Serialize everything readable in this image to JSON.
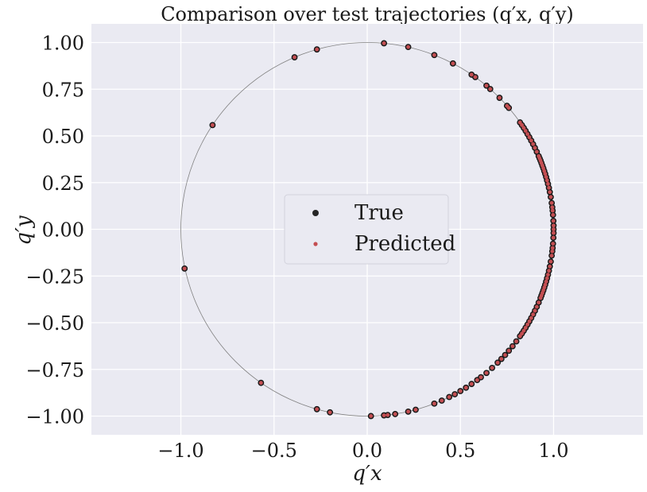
{
  "chart_data": {
    "type": "scatter",
    "title": "Comparison over test trajectories (q′x, q′y)",
    "xlabel": "q′x",
    "ylabel": "q′y",
    "xlim": [
      -1.48,
      1.48
    ],
    "ylim": [
      -1.1,
      1.1
    ],
    "xticks": [
      -1.0,
      -0.5,
      0.0,
      0.5,
      1.0
    ],
    "xtick_labels": [
      "−1.0",
      "−0.5",
      "0.0",
      "0.5",
      "1.0"
    ],
    "yticks": [
      1.0,
      0.75,
      0.5,
      0.25,
      0.0,
      -0.25,
      -0.5,
      -0.75,
      -1.0
    ],
    "ytick_labels": [
      "1.00",
      "0.75",
      "0.50",
      "0.25",
      "0.00",
      "−0.25",
      "−0.50",
      "−0.75",
      "−1.00"
    ],
    "grid": true,
    "reference_curve": "unit circle",
    "legend_position": "center-left",
    "colors": {
      "background": "#eaeaf2",
      "grid": "#ffffff",
      "true": "#262626",
      "predicted": "#c44e52",
      "circle": "#808080"
    },
    "series": [
      {
        "name": "True",
        "points": [
          [
            0.09,
            0.996
          ],
          [
            0.22,
            0.976
          ],
          [
            0.36,
            0.933
          ],
          [
            0.46,
            0.888
          ],
          [
            0.56,
            0.828
          ],
          [
            0.58,
            0.815
          ],
          [
            0.64,
            0.769
          ],
          [
            0.66,
            0.751
          ],
          [
            0.71,
            0.704
          ],
          [
            0.75,
            0.661
          ],
          [
            0.76,
            0.65
          ],
          [
            0.82,
            0.572
          ],
          [
            0.83,
            0.558
          ],
          [
            0.84,
            0.543
          ],
          [
            0.85,
            0.527
          ],
          [
            0.86,
            0.51
          ],
          [
            0.87,
            0.493
          ],
          [
            0.88,
            0.475
          ],
          [
            0.89,
            0.456
          ],
          [
            0.9,
            0.436
          ],
          [
            0.91,
            0.415
          ],
          [
            0.92,
            0.392
          ],
          [
            0.925,
            0.38
          ],
          [
            0.93,
            0.368
          ],
          [
            0.935,
            0.355
          ],
          [
            0.94,
            0.341
          ],
          [
            0.945,
            0.327
          ],
          [
            0.95,
            0.312
          ],
          [
            0.955,
            0.297
          ],
          [
            0.96,
            0.28
          ],
          [
            0.965,
            0.262
          ],
          [
            0.97,
            0.243
          ],
          [
            0.975,
            0.222
          ],
          [
            0.98,
            0.199
          ],
          [
            0.985,
            0.173
          ],
          [
            0.99,
            0.141
          ],
          [
            0.993,
            0.118
          ],
          [
            0.995,
            0.1
          ],
          [
            0.997,
            0.077
          ],
          [
            0.999,
            0.045
          ],
          [
            1.0,
            0.02
          ],
          [
            1.0,
            0.0
          ],
          [
            1.0,
            -0.02
          ],
          [
            0.999,
            -0.045
          ],
          [
            0.997,
            -0.077
          ],
          [
            0.995,
            -0.1
          ],
          [
            0.993,
            -0.118
          ],
          [
            0.99,
            -0.141
          ],
          [
            0.985,
            -0.173
          ],
          [
            0.98,
            -0.199
          ],
          [
            0.975,
            -0.222
          ],
          [
            0.97,
            -0.243
          ],
          [
            0.965,
            -0.262
          ],
          [
            0.96,
            -0.28
          ],
          [
            0.955,
            -0.297
          ],
          [
            0.95,
            -0.312
          ],
          [
            0.945,
            -0.327
          ],
          [
            0.94,
            -0.341
          ],
          [
            0.935,
            -0.355
          ],
          [
            0.93,
            -0.368
          ],
          [
            0.92,
            -0.392
          ],
          [
            0.91,
            -0.415
          ],
          [
            0.9,
            -0.436
          ],
          [
            0.89,
            -0.456
          ],
          [
            0.88,
            -0.475
          ],
          [
            0.87,
            -0.493
          ],
          [
            0.86,
            -0.51
          ],
          [
            0.85,
            -0.527
          ],
          [
            0.84,
            -0.543
          ],
          [
            0.83,
            -0.558
          ],
          [
            0.82,
            -0.572
          ],
          [
            0.8,
            -0.6
          ],
          [
            0.78,
            -0.626
          ],
          [
            0.76,
            -0.65
          ],
          [
            0.74,
            -0.673
          ],
          [
            0.72,
            -0.694
          ],
          [
            0.7,
            -0.714
          ],
          [
            0.67,
            -0.742
          ],
          [
            0.64,
            -0.769
          ],
          [
            0.61,
            -0.792
          ],
          [
            0.59,
            -0.807
          ],
          [
            0.56,
            -0.828
          ],
          [
            0.53,
            -0.848
          ],
          [
            0.5,
            -0.866
          ],
          [
            0.47,
            -0.883
          ],
          [
            0.44,
            -0.898
          ],
          [
            0.4,
            -0.917
          ],
          [
            0.36,
            -0.933
          ],
          [
            0.26,
            -0.966
          ],
          [
            0.22,
            -0.976
          ],
          [
            0.15,
            -0.989
          ],
          [
            0.11,
            -0.994
          ],
          [
            0.09,
            -0.996
          ],
          [
            0.02,
            -0.9998
          ],
          [
            -0.2,
            -0.98
          ],
          [
            -0.27,
            -0.963
          ],
          [
            -0.57,
            -0.822
          ],
          [
            -0.98,
            -0.21
          ],
          [
            -0.83,
            0.558
          ],
          [
            -0.39,
            0.921
          ],
          [
            -0.27,
            0.963
          ]
        ]
      },
      {
        "name": "Predicted",
        "points": [
          [
            0.09,
            0.996
          ],
          [
            0.22,
            0.976
          ],
          [
            0.36,
            0.933
          ],
          [
            0.46,
            0.888
          ],
          [
            0.56,
            0.828
          ],
          [
            0.58,
            0.815
          ],
          [
            0.64,
            0.769
          ],
          [
            0.66,
            0.751
          ],
          [
            0.71,
            0.704
          ],
          [
            0.75,
            0.661
          ],
          [
            0.76,
            0.65
          ],
          [
            0.82,
            0.572
          ],
          [
            0.83,
            0.558
          ],
          [
            0.84,
            0.543
          ],
          [
            0.85,
            0.527
          ],
          [
            0.86,
            0.51
          ],
          [
            0.87,
            0.493
          ],
          [
            0.88,
            0.475
          ],
          [
            0.89,
            0.456
          ],
          [
            0.9,
            0.436
          ],
          [
            0.91,
            0.415
          ],
          [
            0.92,
            0.392
          ],
          [
            0.925,
            0.38
          ],
          [
            0.93,
            0.368
          ],
          [
            0.935,
            0.355
          ],
          [
            0.94,
            0.341
          ],
          [
            0.945,
            0.327
          ],
          [
            0.95,
            0.312
          ],
          [
            0.955,
            0.297
          ],
          [
            0.96,
            0.28
          ],
          [
            0.965,
            0.262
          ],
          [
            0.97,
            0.243
          ],
          [
            0.975,
            0.222
          ],
          [
            0.98,
            0.199
          ],
          [
            0.985,
            0.173
          ],
          [
            0.99,
            0.141
          ],
          [
            0.993,
            0.118
          ],
          [
            0.995,
            0.1
          ],
          [
            0.997,
            0.077
          ],
          [
            0.999,
            0.045
          ],
          [
            1.0,
            0.02
          ],
          [
            1.0,
            0.0
          ],
          [
            1.0,
            -0.02
          ],
          [
            0.999,
            -0.045
          ],
          [
            0.997,
            -0.077
          ],
          [
            0.995,
            -0.1
          ],
          [
            0.993,
            -0.118
          ],
          [
            0.99,
            -0.141
          ],
          [
            0.985,
            -0.173
          ],
          [
            0.98,
            -0.199
          ],
          [
            0.975,
            -0.222
          ],
          [
            0.97,
            -0.243
          ],
          [
            0.965,
            -0.262
          ],
          [
            0.96,
            -0.28
          ],
          [
            0.955,
            -0.297
          ],
          [
            0.95,
            -0.312
          ],
          [
            0.945,
            -0.327
          ],
          [
            0.94,
            -0.341
          ],
          [
            0.935,
            -0.355
          ],
          [
            0.93,
            -0.368
          ],
          [
            0.92,
            -0.392
          ],
          [
            0.91,
            -0.415
          ],
          [
            0.9,
            -0.436
          ],
          [
            0.89,
            -0.456
          ],
          [
            0.88,
            -0.475
          ],
          [
            0.87,
            -0.493
          ],
          [
            0.86,
            -0.51
          ],
          [
            0.85,
            -0.527
          ],
          [
            0.84,
            -0.543
          ],
          [
            0.83,
            -0.558
          ],
          [
            0.82,
            -0.572
          ],
          [
            0.8,
            -0.6
          ],
          [
            0.78,
            -0.626
          ],
          [
            0.76,
            -0.65
          ],
          [
            0.74,
            -0.673
          ],
          [
            0.72,
            -0.694
          ],
          [
            0.7,
            -0.714
          ],
          [
            0.67,
            -0.742
          ],
          [
            0.64,
            -0.769
          ],
          [
            0.61,
            -0.792
          ],
          [
            0.59,
            -0.807
          ],
          [
            0.56,
            -0.828
          ],
          [
            0.53,
            -0.848
          ],
          [
            0.5,
            -0.866
          ],
          [
            0.47,
            -0.883
          ],
          [
            0.44,
            -0.898
          ],
          [
            0.4,
            -0.917
          ],
          [
            0.36,
            -0.933
          ],
          [
            0.26,
            -0.966
          ],
          [
            0.22,
            -0.976
          ],
          [
            0.15,
            -0.989
          ],
          [
            0.11,
            -0.994
          ],
          [
            0.09,
            -0.996
          ],
          [
            0.02,
            -0.9998
          ],
          [
            -0.2,
            -0.98
          ],
          [
            -0.27,
            -0.963
          ],
          [
            -0.57,
            -0.822
          ],
          [
            -0.98,
            -0.21
          ],
          [
            -0.83,
            0.558
          ],
          [
            -0.39,
            0.921
          ],
          [
            -0.27,
            0.963
          ]
        ]
      }
    ]
  }
}
